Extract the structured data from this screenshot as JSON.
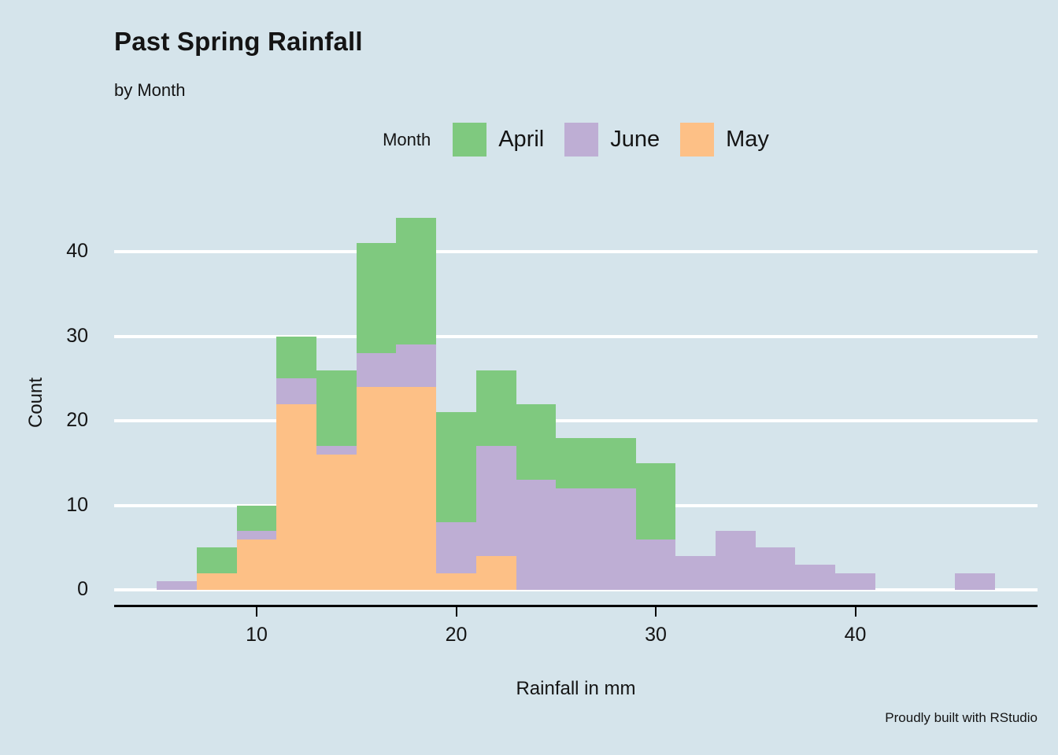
{
  "title": "Past Spring Rainfall",
  "subtitle": "by Month",
  "caption": "Proudly built with RStudio",
  "background_color": "#d5e4eb",
  "legend": {
    "title": "Month",
    "items": [
      {
        "label": "April",
        "color": "#7fc97f"
      },
      {
        "label": "June",
        "color": "#beaed4"
      },
      {
        "label": "May",
        "color": "#fdc086"
      }
    ]
  },
  "chart_data": {
    "type": "bar",
    "subtype": "stacked-histogram",
    "title": "Past Spring Rainfall",
    "subtitle": "by Month",
    "xlabel": "Rainfall in mm",
    "ylabel": "Count",
    "bin_width": 2,
    "bin_centers": [
      6,
      8,
      10,
      12,
      14,
      16,
      18,
      20,
      22,
      24,
      26,
      28,
      30,
      32,
      34,
      36,
      38,
      40,
      42,
      44,
      46
    ],
    "series": [
      {
        "name": "May",
        "color": "#fdc086",
        "values": [
          0,
          2,
          6,
          22,
          16,
          24,
          24,
          2,
          4,
          0,
          0,
          0,
          0,
          0,
          0,
          0,
          0,
          0,
          0,
          0,
          0
        ]
      },
      {
        "name": "June",
        "color": "#beaed4",
        "values": [
          1,
          0,
          1,
          3,
          1,
          4,
          5,
          6,
          13,
          13,
          12,
          12,
          6,
          4,
          7,
          5,
          3,
          2,
          0,
          0,
          2
        ]
      },
      {
        "name": "April",
        "color": "#7fc97f",
        "values": [
          0,
          3,
          3,
          5,
          9,
          13,
          15,
          13,
          9,
          9,
          6,
          6,
          9,
          0,
          0,
          0,
          0,
          0,
          0,
          0,
          0
        ]
      }
    ],
    "stack_order_bottom_to_top": [
      "May",
      "June",
      "April"
    ],
    "bin_totals": [
      1,
      5,
      10,
      30,
      26,
      41,
      44,
      21,
      26,
      22,
      18,
      18,
      15,
      4,
      7,
      5,
      3,
      2,
      0,
      0,
      2
    ],
    "x_ticks": [
      10,
      20,
      30,
      40
    ],
    "y_ticks": [
      0,
      10,
      20,
      30,
      40
    ],
    "xlim": [
      3,
      49
    ],
    "ylim": [
      0,
      46
    ],
    "grid": "horizontal-white-lines",
    "legend_position": "top"
  }
}
